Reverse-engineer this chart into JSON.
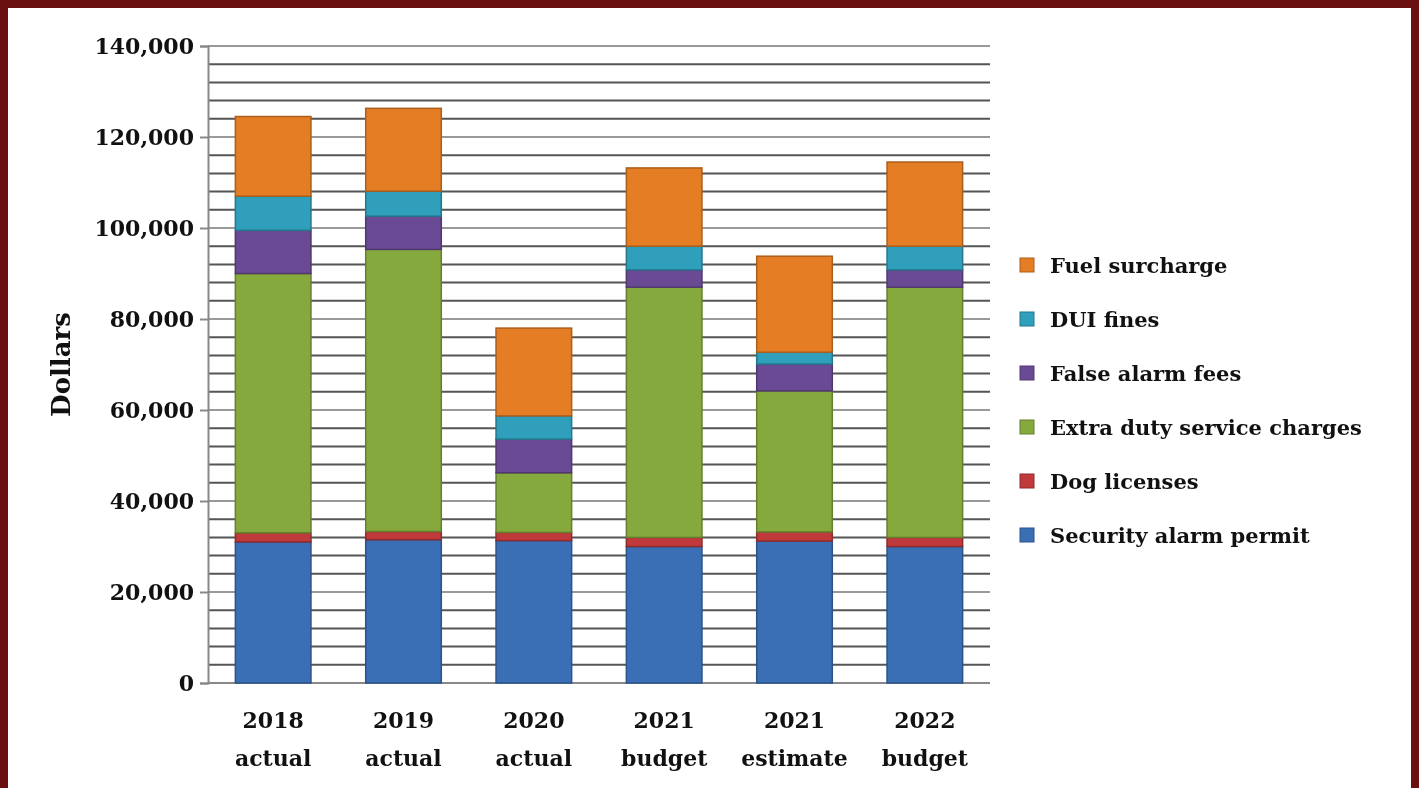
{
  "chart_data": {
    "type": "bar",
    "stacked": true,
    "ylabel": "Dollars",
    "categories": [
      "2018\nactual",
      "2019\nactual",
      "2020\nactual",
      "2021\nbudget",
      "2021\nestimate",
      "2022\nbudget"
    ],
    "series": [
      {
        "name": "Security alarm permit",
        "color": "#3a6eb5",
        "values": [
          31000,
          31500,
          31300,
          30000,
          31200,
          30000
        ]
      },
      {
        "name": "Dog licenses",
        "color": "#c0393b",
        "values": [
          2000,
          1800,
          1800,
          2000,
          2000,
          2000
        ]
      },
      {
        "name": "Extra duty service charges",
        "color": "#86a93e",
        "values": [
          57000,
          62000,
          13100,
          55000,
          31000,
          55000
        ]
      },
      {
        "name": "False alarm fees",
        "color": "#6a4a94",
        "values": [
          9500,
          7300,
          7400,
          3800,
          5900,
          3800
        ]
      },
      {
        "name": "DUI fines",
        "color": "#2f9fbb",
        "values": [
          7500,
          5500,
          5100,
          5200,
          2600,
          5200
        ]
      },
      {
        "name": "Fuel surcharge",
        "color": "#e57d24",
        "values": [
          17500,
          18200,
          19300,
          17200,
          21100,
          18500
        ]
      }
    ],
    "ylim": [
      0,
      140000
    ],
    "yticks": [
      0,
      {
        "value": 4000,
        "label": null
      },
      {
        "value": 8000,
        "label": null
      },
      {
        "value": 12000,
        "label": null
      },
      {
        "value": 16000,
        "label": null
      },
      {
        "value": 20000,
        "label": "20,000"
      },
      {
        "value": 24000,
        "label": null
      },
      {
        "value": 28000,
        "label": null
      },
      {
        "value": 32000,
        "label": null
      },
      {
        "value": 36000,
        "label": null
      },
      {
        "value": 40000,
        "label": "40,000"
      },
      {
        "value": 44000,
        "label": null
      },
      {
        "value": 48000,
        "label": null
      },
      {
        "value": 52000,
        "label": null
      },
      {
        "value": 56000,
        "label": null
      },
      {
        "value": 60000,
        "label": "60,000"
      },
      {
        "value": 64000,
        "label": null
      },
      {
        "value": 68000,
        "label": null
      },
      {
        "value": 72000,
        "label": null
      },
      {
        "value": 76000,
        "label": null
      },
      {
        "value": 80000,
        "label": "80,000"
      },
      {
        "value": 84000,
        "label": null
      },
      {
        "value": 88000,
        "label": null
      },
      {
        "value": 92000,
        "label": null
      },
      {
        "value": 96000,
        "label": null
      },
      {
        "value": 100000,
        "label": "100,000"
      },
      {
        "value": 104000,
        "label": null
      },
      {
        "value": 108000,
        "label": null
      },
      {
        "value": 112000,
        "label": null
      },
      {
        "value": 116000,
        "label": null
      },
      {
        "value": 120000,
        "label": "120,000"
      },
      {
        "value": 124000,
        "label": null
      },
      {
        "value": 128000,
        "label": null
      },
      {
        "value": 132000,
        "label": null
      },
      {
        "value": 136000,
        "label": null
      },
      {
        "value": 140000,
        "label": "140,000"
      }
    ],
    "grid": true,
    "legend": "right"
  }
}
